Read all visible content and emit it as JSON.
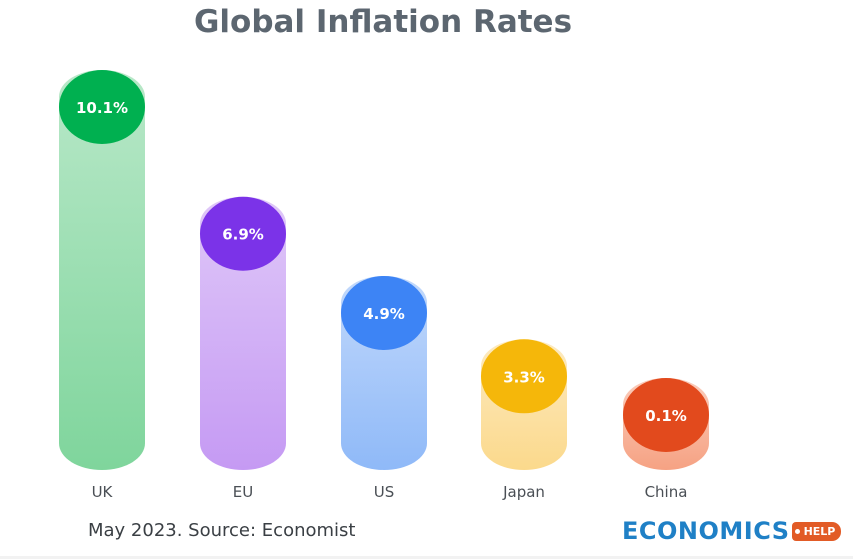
{
  "chart_data": {
    "type": "bar",
    "title": "Global Inflation Rates",
    "categories": [
      "UK",
      "EU",
      "US",
      "Japan",
      "China"
    ],
    "values": [
      10.1,
      6.9,
      4.9,
      3.3,
      0.1
    ],
    "value_labels": [
      "10.1%",
      "6.9%",
      "4.9%",
      "3.3%",
      "0.1%"
    ],
    "colors": [
      "#00b050",
      "#7b33e8",
      "#3d84f5",
      "#f5b70a",
      "#e24a1d"
    ],
    "fill_colors": [
      "#7fd59c",
      "#c59af3",
      "#8fb9f8",
      "#fbd98c",
      "#f6a283"
    ],
    "xlabel": "",
    "ylabel": "",
    "grid": false,
    "legend": "none"
  },
  "source_note": "May 2023. Source: Economist",
  "logo": {
    "word": "ECONOMICS",
    "tag": "HELP",
    "word_color": "#1f80c6"
  }
}
